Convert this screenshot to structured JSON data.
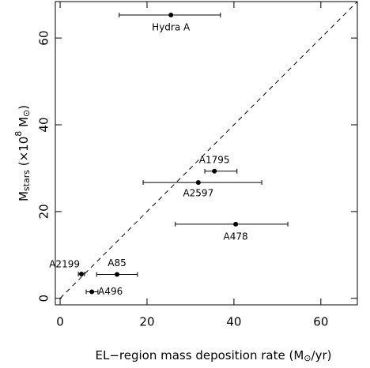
{
  "chart_data": {
    "type": "scatter",
    "xlabel": [
      "EL−region mass deposition rate (M",
      "⊙",
      "/yr)"
    ],
    "ylabel": [
      "M",
      "stars",
      " (×10",
      "8",
      " M",
      "⊙",
      ")"
    ],
    "xlim": [
      -1.1,
      68.4
    ],
    "ylim": [
      -1.5,
      68.4
    ],
    "xticks": [
      0,
      20,
      40,
      60
    ],
    "yticks": [
      0,
      20,
      40,
      60
    ],
    "color": "#000000",
    "reference_line": "y=x",
    "labels": [
      "Hydra A",
      "A1795",
      "A2597",
      "A478",
      "A85",
      "A2199",
      "A496"
    ],
    "x": [
      25.5,
      35.5,
      31.8,
      40.4,
      13.1,
      4.9,
      7.3
    ],
    "y": [
      65.3,
      29.3,
      26.7,
      17.1,
      5.5,
      5.6,
      1.5
    ],
    "xerr_minus": [
      11.9,
      2.2,
      12.7,
      13.9,
      4.7,
      0.7,
      1.3
    ],
    "xerr_plus": [
      11.4,
      5.2,
      14.6,
      12.0,
      4.7,
      0.7,
      1.4
    ]
  }
}
